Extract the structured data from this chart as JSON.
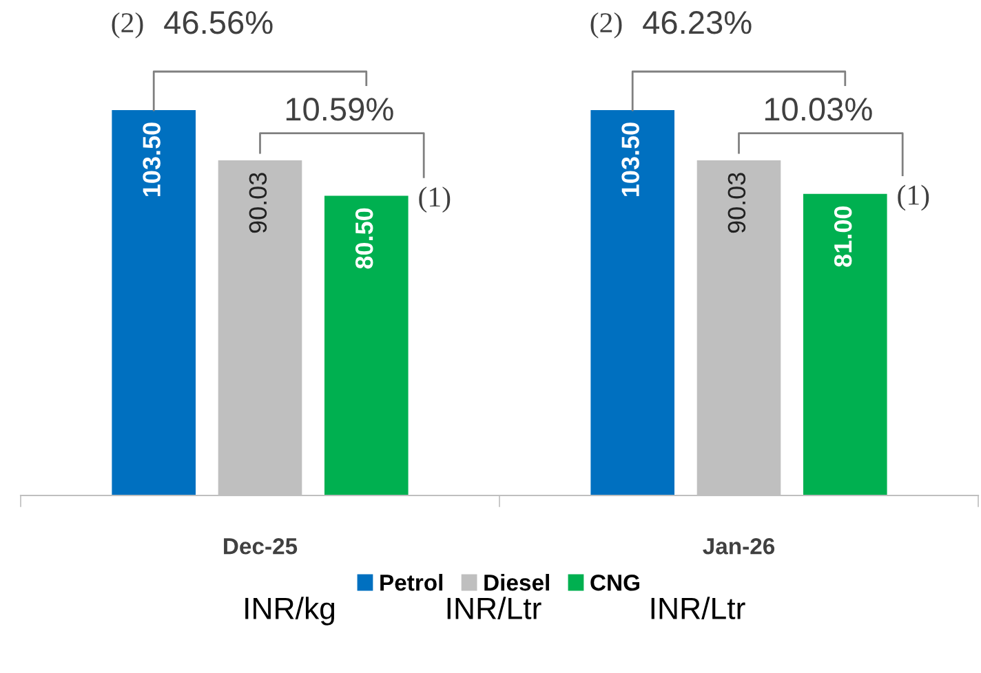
{
  "chart_data": {
    "type": "bar",
    "categories": [
      "Dec-25",
      "Jan-26"
    ],
    "series": [
      {
        "name": "Petrol",
        "color": "#0070c0",
        "values": [
          103.5,
          103.5
        ],
        "value_labels": [
          "103.50",
          "103.50"
        ]
      },
      {
        "name": "Diesel",
        "color": "#bfbfbf",
        "values": [
          90.03,
          90.03
        ],
        "value_labels": [
          "90.03",
          "90.03"
        ]
      },
      {
        "name": "CNG",
        "color": "#00b050",
        "values": [
          80.5,
          81.0
        ],
        "value_labels": [
          "80.50",
          "81.00"
        ]
      }
    ],
    "annotations": [
      "(2)",
      "46.56%",
      "10.59%",
      "(1)",
      "(2)",
      "46.23%",
      "10.03%",
      "(1)",
      "INR/kg",
      "INR/Ltr",
      "INR/Ltr"
    ],
    "legend": "bottom",
    "tick_labels": "x",
    "grid": false
  }
}
